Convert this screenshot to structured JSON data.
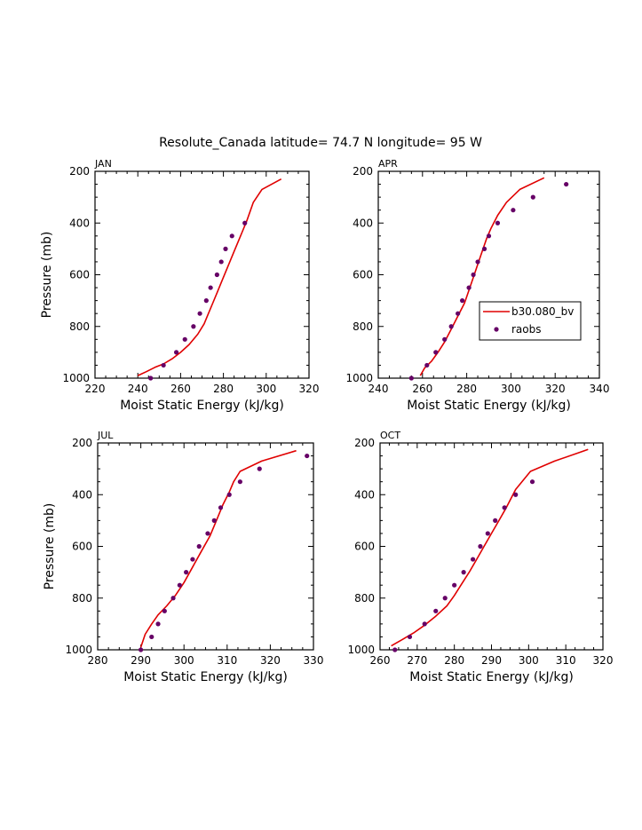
{
  "figure": {
    "title": "Resolute_Canada  latitude= 74.7 N longitude= 95 W"
  },
  "colors": {
    "model": "#e00000",
    "obs": "#660066",
    "axis": "#000000"
  },
  "chart_data": [
    {
      "type": "line",
      "panel": "JAN",
      "xlabel": "Moist Static Energy (kJ/kg)",
      "ylabel": "Pressure (mb)",
      "xlim": [
        220,
        320
      ],
      "ylim": [
        1000,
        200
      ],
      "xticks": [
        220,
        240,
        260,
        280,
        300,
        320
      ],
      "yticks": [
        200,
        400,
        600,
        800,
        1000
      ],
      "series": [
        {
          "kind": "line",
          "x": [
            240,
            244,
            248,
            252,
            256,
            260,
            264,
            268,
            271,
            273,
            275,
            277,
            279,
            281,
            283,
            285,
            287,
            289,
            291,
            294,
            298,
            307
          ],
          "y": [
            990,
            975,
            958,
            945,
            925,
            900,
            870,
            830,
            790,
            750,
            710,
            670,
            630,
            590,
            550,
            510,
            470,
            430,
            390,
            320,
            270,
            230
          ]
        },
        {
          "kind": "scatter",
          "x": [
            246,
            252,
            258,
            262,
            266,
            269,
            272,
            274,
            277,
            279,
            281,
            284,
            290
          ],
          "y": [
            1000,
            950,
            900,
            850,
            800,
            750,
            700,
            650,
            600,
            550,
            500,
            450,
            400
          ]
        }
      ]
    },
    {
      "type": "line",
      "panel": "APR",
      "xlabel": "Moist Static Energy (kJ/kg)",
      "ylabel": "",
      "xlim": [
        240,
        340
      ],
      "ylim": [
        1000,
        200
      ],
      "xticks": [
        240,
        260,
        280,
        300,
        320,
        340
      ],
      "yticks": [
        200,
        400,
        600,
        800,
        1000
      ],
      "legend": {
        "position": "right",
        "entries": [
          "b30.080_bv",
          "raobs"
        ]
      },
      "series": [
        {
          "name": "b30.080_bv",
          "kind": "line",
          "x": [
            259,
            261,
            264,
            267,
            270,
            273,
            276,
            279,
            281,
            283,
            285,
            287,
            289,
            291,
            294,
            298,
            304,
            315
          ],
          "y": [
            990,
            960,
            935,
            900,
            860,
            810,
            760,
            710,
            660,
            610,
            560,
            510,
            460,
            420,
            370,
            320,
            270,
            225
          ]
        },
        {
          "name": "raobs",
          "kind": "scatter",
          "x": [
            255,
            262,
            266,
            270,
            273,
            276,
            278,
            281,
            283,
            285,
            288,
            290,
            294,
            301,
            310,
            325
          ],
          "y": [
            1000,
            950,
            900,
            850,
            800,
            750,
            700,
            650,
            600,
            550,
            500,
            450,
            400,
            350,
            300,
            250
          ]
        }
      ]
    },
    {
      "type": "line",
      "panel": "JUL",
      "xlabel": "Moist Static Energy (kJ/kg)",
      "ylabel": "Pressure (mb)",
      "xlim": [
        280,
        330
      ],
      "ylim": [
        1000,
        200
      ],
      "xticks": [
        280,
        290,
        300,
        310,
        320,
        330
      ],
      "yticks": [
        200,
        400,
        600,
        800,
        1000
      ],
      "series": [
        {
          "kind": "line",
          "x": [
            290,
            291,
            292.5,
            294,
            296,
            298,
            300,
            302,
            304,
            306,
            307.5,
            309,
            310.5,
            311.5,
            313,
            318,
            326
          ],
          "y": [
            990,
            940,
            900,
            865,
            830,
            790,
            740,
            680,
            620,
            560,
            500,
            440,
            390,
            350,
            310,
            270,
            230
          ]
        },
        {
          "kind": "scatter",
          "x": [
            290,
            292.5,
            294,
            295.5,
            297.5,
            299,
            300.5,
            302,
            303.5,
            305.5,
            307,
            308.5,
            310.5,
            313,
            317.5,
            328.5
          ],
          "y": [
            1000,
            950,
            900,
            850,
            800,
            750,
            700,
            650,
            600,
            550,
            500,
            450,
            400,
            350,
            300,
            250
          ]
        }
      ]
    },
    {
      "type": "line",
      "panel": "OCT",
      "xlabel": "Moist Static Energy (kJ/kg)",
      "ylabel": "",
      "xlim": [
        260,
        320
      ],
      "ylim": [
        1000,
        200
      ],
      "xticks": [
        260,
        270,
        280,
        290,
        300,
        310,
        320
      ],
      "yticks": [
        200,
        400,
        600,
        800,
        1000
      ],
      "series": [
        {
          "kind": "line",
          "x": [
            263,
            266,
            269,
            272,
            275,
            278,
            280,
            282,
            284,
            286,
            288,
            290,
            292,
            294,
            296.5,
            300.5,
            307,
            316
          ],
          "y": [
            985,
            960,
            935,
            905,
            870,
            830,
            790,
            745,
            700,
            650,
            600,
            550,
            500,
            450,
            380,
            310,
            270,
            225
          ]
        },
        {
          "kind": "scatter",
          "x": [
            264,
            268,
            272,
            275,
            277.5,
            280,
            282.5,
            285,
            287,
            289,
            291,
            293.5,
            296.5,
            301
          ],
          "y": [
            1000,
            950,
            900,
            850,
            800,
            750,
            700,
            650,
            600,
            550,
            500,
            450,
            400,
            350
          ]
        }
      ]
    }
  ]
}
